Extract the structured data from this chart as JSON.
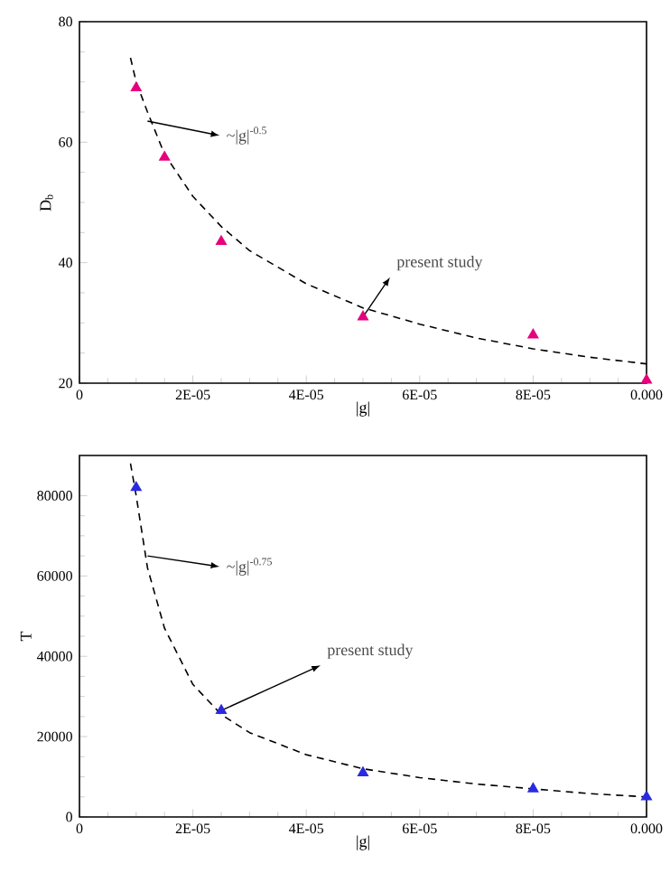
{
  "chart_data": [
    {
      "type": "scatter",
      "xlabel": "|g|",
      "ylabel": "D$_{b}$",
      "xlim": [
        0,
        0.0001
      ],
      "ylim": [
        20,
        80
      ],
      "xticks": [
        0,
        {
          "value": 2e-05,
          "label": "2E-05"
        },
        {
          "value": 4e-05,
          "label": "4E-05"
        },
        {
          "value": 6e-05,
          "label": "6E-05"
        },
        {
          "value": 8e-05,
          "label": "8E-05"
        },
        {
          "value": 0.0001,
          "label": "0.000"
        }
      ],
      "yticks": [
        20,
        40,
        60,
        80
      ],
      "series": [
        {
          "color": "#e6007e",
          "marker": "triangle",
          "x": [
            1e-05,
            1.5e-05,
            2.5e-05,
            5e-05,
            8e-05,
            0.0001
          ],
          "values": [
            69,
            57.5,
            43.5,
            31,
            28,
            20.5
          ]
        },
        {
          "type": "line",
          "color": "#000000",
          "marker": "none",
          "line_style": "dashed",
          "x": [
            9e-06,
            1e-05,
            1.2e-05,
            1.5e-05,
            2e-05,
            2.5e-05,
            3e-05,
            4e-05,
            5e-05,
            6e-05,
            7e-05,
            8e-05,
            9e-05,
            0.0001
          ],
          "values": [
            74,
            70,
            65,
            58,
            51,
            46,
            42,
            36.5,
            32.5,
            29.8,
            27.5,
            25.7,
            24.3,
            23.2
          ]
        }
      ],
      "annotations": [
        {
          "text": "~|g|$^{-0.5}$",
          "x": 1.2e-05,
          "y": 63.5
        },
        {
          "text": "present study",
          "x": 5e-05,
          "y": 31
        }
      ]
    },
    {
      "type": "scatter",
      "xlabel": "|g|",
      "ylabel": "T",
      "xlim": [
        0,
        0.0001
      ],
      "ylim": [
        0,
        90000
      ],
      "xticks": [
        0,
        {
          "value": 2e-05,
          "label": "2E-05"
        },
        {
          "value": 4e-05,
          "label": "4E-05"
        },
        {
          "value": 6e-05,
          "label": "6E-05"
        },
        {
          "value": 8e-05,
          "label": "8E-05"
        },
        {
          "value": 0.0001,
          "label": "0.000"
        }
      ],
      "yticks": [
        0,
        20000,
        40000,
        60000,
        80000
      ],
      "series": [
        {
          "color": "#2a2ae0",
          "marker": "triangle",
          "x": [
            1e-05,
            2.5e-05,
            5e-05,
            8e-05,
            0.0001
          ],
          "values": [
            82000,
            26500,
            11000,
            7000,
            5000
          ]
        },
        {
          "type": "line",
          "color": "#000000",
          "marker": "none",
          "line_style": "dashed",
          "x": [
            9e-06,
            1e-05,
            1.2e-05,
            1.5e-05,
            2e-05,
            2.5e-05,
            3e-05,
            4e-05,
            5e-05,
            6e-05,
            7e-05,
            8e-05,
            9e-05,
            0.0001
          ],
          "values": [
            88000,
            80000,
            62000,
            47000,
            33000,
            25500,
            21000,
            15500,
            12000,
            9800,
            8200,
            7000,
            5800,
            5000
          ]
        }
      ],
      "annotations": [
        {
          "text": "~|g|$^{-0.75}$",
          "x": 1.2e-05,
          "y": 65000
        },
        {
          "text": "present study",
          "x": 2.5e-05,
          "y": 26500
        }
      ]
    }
  ]
}
